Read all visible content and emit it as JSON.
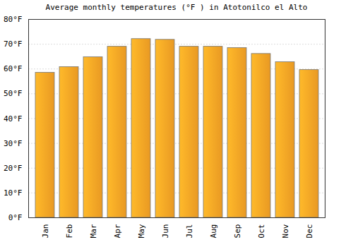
{
  "chart_data": {
    "type": "bar",
    "title": "Average monthly temperatures (°F ) in Atotonilco el Alto",
    "categories": [
      "Jan",
      "Feb",
      "Mar",
      "Apr",
      "May",
      "Jun",
      "Jul",
      "Aug",
      "Sep",
      "Oct",
      "Nov",
      "Dec"
    ],
    "values": [
      58.5,
      60.8,
      64.8,
      69.0,
      72.1,
      71.8,
      69.0,
      69.0,
      68.5,
      66.1,
      62.8,
      59.6
    ],
    "color": "#ffa726",
    "ylim": [
      0,
      80
    ],
    "yticks": [
      {
        "value": 0,
        "label": "0°F"
      },
      {
        "value": 10,
        "label": "10°F"
      },
      {
        "value": 20,
        "label": "20°F"
      },
      {
        "value": 30,
        "label": "30°F"
      },
      {
        "value": 40,
        "label": "40°F"
      },
      {
        "value": 50,
        "label": "50°F"
      },
      {
        "value": 60,
        "label": "60°F"
      },
      {
        "value": 70,
        "label": "70°F"
      },
      {
        "value": 80,
        "label": "80°F"
      }
    ],
    "grid": true
  }
}
